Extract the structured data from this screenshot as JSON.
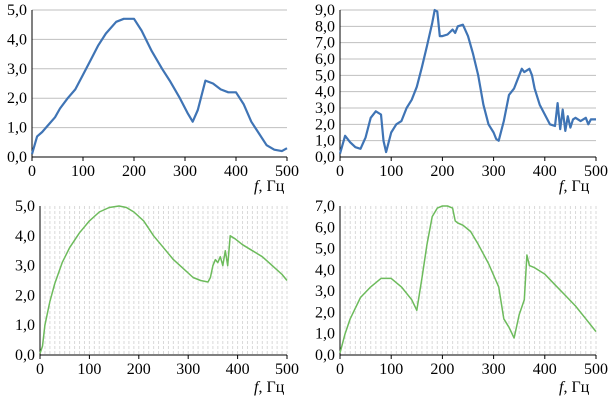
{
  "xlabel": {
    "var": "f",
    "rest": ", Гц"
  },
  "colors": {
    "blue": "#3f74b5",
    "green": "#6dbb5c",
    "grid": "#bfbfbf",
    "axis": "#000000"
  },
  "chart_data": [
    {
      "type": "line",
      "xlim": [
        0,
        500
      ],
      "ylim": [
        0,
        5
      ],
      "xticks": [
        "0",
        "100",
        "200",
        "300",
        "400",
        "500"
      ],
      "yticks": [
        "0,0",
        "1,0",
        "2,0",
        "3,0",
        "4,0",
        "5,0"
      ],
      "grid": "horizontal solid",
      "color": "#3f74b5",
      "x": [
        0,
        10,
        20,
        30,
        45,
        55,
        70,
        85,
        100,
        115,
        130,
        145,
        165,
        180,
        200,
        215,
        235,
        255,
        270,
        290,
        305,
        315,
        325,
        340,
        355,
        370,
        385,
        400,
        415,
        430,
        445,
        460,
        475,
        490,
        500
      ],
      "y": [
        0.1,
        0.7,
        0.85,
        1.05,
        1.35,
        1.65,
        2.0,
        2.3,
        2.8,
        3.3,
        3.8,
        4.2,
        4.6,
        4.7,
        4.7,
        4.3,
        3.6,
        3.0,
        2.6,
        2.0,
        1.5,
        1.2,
        1.6,
        2.6,
        2.5,
        2.3,
        2.2,
        2.2,
        1.8,
        1.2,
        0.8,
        0.4,
        0.25,
        0.2,
        0.3
      ]
    },
    {
      "type": "line",
      "xlim": [
        0,
        500
      ],
      "ylim": [
        0,
        9
      ],
      "xticks": [
        "0",
        "100",
        "200",
        "300",
        "400",
        "500"
      ],
      "yticks": [
        "0,0",
        "1,0",
        "2,0",
        "3,0",
        "4,0",
        "5,0",
        "6,0",
        "7,0",
        "8,0",
        "9,0"
      ],
      "grid": "horizontal solid",
      "color": "#3f74b5",
      "x": [
        0,
        10,
        20,
        30,
        40,
        50,
        60,
        70,
        80,
        85,
        90,
        100,
        110,
        120,
        130,
        140,
        150,
        160,
        170,
        180,
        185,
        190,
        195,
        200,
        210,
        220,
        225,
        230,
        240,
        250,
        260,
        270,
        280,
        290,
        300,
        305,
        310,
        320,
        330,
        340,
        350,
        355,
        360,
        370,
        375,
        380,
        390,
        400,
        410,
        420,
        425,
        430,
        435,
        440,
        445,
        450,
        455,
        460,
        470,
        480,
        485,
        490,
        500
      ],
      "y": [
        0.2,
        1.3,
        0.9,
        0.6,
        0.5,
        1.2,
        2.4,
        2.8,
        2.6,
        1.0,
        0.3,
        1.5,
        2.0,
        2.2,
        3.0,
        3.5,
        4.3,
        5.5,
        6.8,
        8.2,
        9.0,
        8.9,
        7.4,
        7.4,
        7.5,
        7.8,
        7.6,
        8.0,
        8.1,
        7.4,
        6.3,
        5.0,
        3.2,
        2.0,
        1.5,
        1.1,
        1.0,
        2.2,
        3.8,
        4.2,
        5.0,
        5.4,
        5.2,
        5.4,
        5.0,
        4.2,
        3.2,
        2.6,
        2.0,
        1.9,
        3.3,
        1.7,
        2.9,
        1.6,
        2.5,
        1.8,
        2.3,
        2.4,
        2.2,
        2.4,
        2.0,
        2.3,
        2.3
      ]
    },
    {
      "type": "line",
      "xlim": [
        0,
        500
      ],
      "ylim": [
        0,
        5
      ],
      "xticks": [
        "0",
        "100",
        "200",
        "300",
        "400",
        "500"
      ],
      "yticks": [
        "0,0",
        "1,0",
        "2,0",
        "3,0",
        "4,0",
        "5,0"
      ],
      "grid": "vertical dashed",
      "color": "#6dbb5c",
      "x": [
        0,
        5,
        10,
        20,
        30,
        45,
        60,
        80,
        100,
        120,
        140,
        160,
        175,
        190,
        210,
        230,
        250,
        270,
        290,
        310,
        325,
        340,
        345,
        350,
        355,
        360,
        365,
        370,
        375,
        380,
        385,
        395,
        410,
        430,
        450,
        470,
        490,
        500
      ],
      "y": [
        0.05,
        0.3,
        1.0,
        1.8,
        2.4,
        3.1,
        3.6,
        4.1,
        4.5,
        4.8,
        4.95,
        5.0,
        4.95,
        4.8,
        4.5,
        4.0,
        3.6,
        3.2,
        2.9,
        2.6,
        2.5,
        2.45,
        2.6,
        3.0,
        3.2,
        3.1,
        3.3,
        3.0,
        3.5,
        3.0,
        4.0,
        3.9,
        3.7,
        3.5,
        3.3,
        3.0,
        2.7,
        2.5
      ]
    },
    {
      "type": "line",
      "xlim": [
        0,
        500
      ],
      "ylim": [
        0,
        7
      ],
      "xticks": [
        "0",
        "100",
        "200",
        "300",
        "400",
        "500"
      ],
      "yticks": [
        "0,0",
        "1,0",
        "2,0",
        "3,0",
        "4,0",
        "5,0",
        "6,0",
        "7,0"
      ],
      "grid": "vertical dashed",
      "color": "#6dbb5c",
      "x": [
        0,
        10,
        20,
        40,
        60,
        80,
        100,
        120,
        140,
        150,
        160,
        170,
        180,
        190,
        200,
        210,
        220,
        225,
        230,
        240,
        255,
        270,
        290,
        310,
        320,
        330,
        340,
        350,
        360,
        365,
        370,
        380,
        400,
        420,
        440,
        460,
        480,
        500
      ],
      "y": [
        0.1,
        1.0,
        1.7,
        2.7,
        3.2,
        3.6,
        3.6,
        3.2,
        2.6,
        2.1,
        3.6,
        5.2,
        6.5,
        6.9,
        7.0,
        7.0,
        6.9,
        6.3,
        6.2,
        6.1,
        5.8,
        5.2,
        4.3,
        3.2,
        1.7,
        1.3,
        0.8,
        1.9,
        2.6,
        4.7,
        4.2,
        4.1,
        3.8,
        3.3,
        2.8,
        2.3,
        1.7,
        1.1
      ]
    }
  ]
}
